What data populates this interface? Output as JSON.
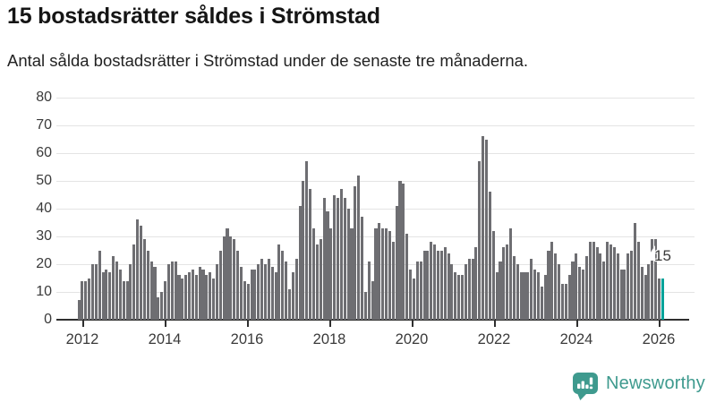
{
  "header": {
    "title": "15 bostadsrätter såldes i Strömstad",
    "subtitle": "Antal sålda bostadsrätter i Strömstad under de senaste tre månaderna."
  },
  "chart_data": {
    "type": "bar",
    "title": "15 bostadsrätter såldes i Strömstad",
    "subtitle": "Antal sålda bostadsrätter i Strömstad under de senaste tre månaderna.",
    "x_start": "2012-01",
    "x_frequency": "monthly",
    "x_tick_labels": [
      "2012",
      "2014",
      "2016",
      "2018",
      "2020",
      "2022",
      "2024",
      "2026"
    ],
    "y_ticks": [
      0,
      10,
      20,
      30,
      40,
      50,
      60,
      70,
      80
    ],
    "ylim": [
      0,
      80
    ],
    "grid": "horizontal",
    "legend": "none",
    "values": [
      7,
      14,
      14,
      15,
      20,
      20,
      25,
      17,
      18,
      17,
      23,
      21,
      18,
      14,
      14,
      20,
      27,
      36,
      34,
      29,
      25,
      21,
      19,
      8,
      10,
      14,
      20,
      21,
      21,
      16,
      15,
      16,
      17,
      18,
      16,
      19,
      18,
      16,
      17,
      15,
      20,
      25,
      30,
      33,
      30,
      29,
      25,
      19,
      14,
      13,
      18,
      18,
      20,
      22,
      20,
      22,
      19,
      17,
      27,
      25,
      21,
      11,
      17,
      22,
      41,
      50,
      57,
      47,
      33,
      27,
      29,
      44,
      39,
      33,
      45,
      44,
      47,
      44,
      40,
      33,
      48,
      52,
      37,
      10,
      21,
      14,
      33,
      35,
      33,
      33,
      32,
      28,
      41,
      50,
      49,
      31,
      18,
      15,
      21,
      21,
      25,
      25,
      28,
      27,
      25,
      25,
      26,
      24,
      20,
      17,
      16,
      16,
      20,
      22,
      22,
      26,
      57,
      66,
      65,
      46,
      32,
      17,
      21,
      26,
      27,
      33,
      23,
      20,
      17,
      17,
      17,
      22,
      18,
      17,
      12,
      16,
      25,
      28,
      24,
      20,
      13,
      13,
      16,
      21,
      24,
      19,
      18,
      23,
      28,
      28,
      26,
      24,
      21,
      28,
      27,
      26,
      24,
      18,
      18,
      24,
      25,
      35,
      28,
      19,
      16,
      20,
      29,
      29,
      15,
      15
    ],
    "highlight_last_bar": true,
    "annotation": {
      "label": "15",
      "applies_to": "last-bar"
    },
    "colors": {
      "bar": "#6e6e72",
      "highlight": "#00a39a",
      "grid": "#e4e4e4",
      "axis": "#2f2f2f",
      "tick_text": "#3a3a3a"
    }
  },
  "footer": {
    "brand": "Newsworthy",
    "brand_color": "#3e9a8e",
    "logo_icon": "newsworthy-speech-bubble-bars-icon"
  }
}
